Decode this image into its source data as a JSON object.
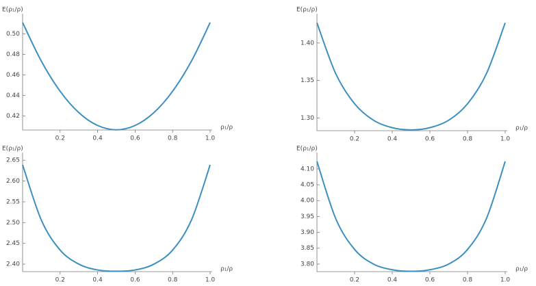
{
  "chart_data": [
    {
      "type": "line",
      "ylabel": "E(ρ₁/ρ)",
      "xlabel": "ρ₁/ρ",
      "color": "#3b8fc0",
      "x": [
        0,
        0.1,
        0.2,
        0.3,
        0.4,
        0.5,
        0.6,
        0.7,
        0.8,
        0.9,
        1
      ],
      "values": [
        0.511,
        0.4734,
        0.4441,
        0.4232,
        0.4107,
        0.4065,
        0.4107,
        0.4232,
        0.4441,
        0.4734,
        0.511
      ],
      "xlim": [
        0,
        1
      ],
      "ylim": [
        0.4063,
        0.513
      ],
      "xticks": [
        0.2,
        0.4,
        0.6,
        0.8,
        {
          "value": 1,
          "label": "1.0"
        }
      ],
      "yticks": [
        {
          "value": 0.42,
          "label": "0.42"
        },
        {
          "value": 0.44,
          "label": "0.44"
        },
        {
          "value": 0.46,
          "label": "0.46"
        },
        {
          "value": 0.48,
          "label": "0.48"
        },
        {
          "value": 0.5,
          "label": "0.50"
        }
      ]
    },
    {
      "type": "line",
      "ylabel": "E(ρ₁/ρ)",
      "xlabel": "ρ₁/ρ",
      "color": "#3b8fc0",
      "x": [
        0,
        0.1,
        0.2,
        0.3,
        0.4,
        0.5,
        0.6,
        0.7,
        0.8,
        0.9,
        1
      ],
      "values": [
        1.427,
        1.359,
        1.319,
        1.297,
        1.287,
        1.284,
        1.287,
        1.297,
        1.319,
        1.359,
        1.427
      ],
      "xlim": [
        0,
        1
      ],
      "ylim": [
        1.283,
        1.43
      ],
      "xticks": [
        0.2,
        0.4,
        0.6,
        0.8,
        {
          "value": 1,
          "label": "1.0"
        }
      ],
      "yticks": [
        {
          "value": 1.3,
          "label": "1.30"
        },
        1.35,
        {
          "value": 1.4,
          "label": "1.40"
        }
      ]
    },
    {
      "type": "line",
      "ylabel": "E(ρ₁/ρ)",
      "xlabel": "ρ₁/ρ",
      "color": "#3b8fc0",
      "x": [
        0,
        0.1,
        0.2,
        0.3,
        0.4,
        0.5,
        0.6,
        0.7,
        0.8,
        0.9,
        1
      ],
      "values": [
        2.639,
        2.506,
        2.434,
        2.4,
        2.386,
        2.383,
        2.386,
        2.4,
        2.434,
        2.506,
        2.639
      ],
      "xlim": [
        0,
        1
      ],
      "ylim": [
        2.382,
        2.652
      ],
      "xticks": [
        0.2,
        0.4,
        0.6,
        0.8,
        {
          "value": 1,
          "label": "1.0"
        }
      ],
      "yticks": [
        {
          "value": 2.4,
          "label": "2.40"
        },
        2.45,
        {
          "value": 2.5,
          "label": "2.50"
        },
        2.55,
        {
          "value": 2.6,
          "label": "2.60"
        },
        2.65
      ]
    },
    {
      "type": "line",
      "ylabel": "E(ρ₁/ρ)",
      "xlabel": "ρ₁/ρ",
      "color": "#3b8fc0",
      "x": [
        0,
        0.1,
        0.2,
        0.3,
        0.4,
        0.5,
        0.6,
        0.7,
        0.8,
        0.9,
        1
      ],
      "values": [
        4.124,
        3.943,
        3.846,
        3.8,
        3.782,
        3.777,
        3.782,
        3.8,
        3.846,
        3.943,
        4.124
      ],
      "xlim": [
        0,
        1
      ],
      "ylim": [
        3.776,
        4.13
      ],
      "xticks": [
        0.2,
        0.4,
        0.6,
        0.8,
        {
          "value": 1,
          "label": "1.0"
        }
      ],
      "yticks": [
        {
          "value": 3.8,
          "label": "3.80"
        },
        3.85,
        {
          "value": 3.9,
          "label": "3.90"
        },
        3.95,
        {
          "value": 4,
          "label": "4.00"
        },
        4.05,
        {
          "value": 4.1,
          "label": "4.10"
        }
      ]
    }
  ]
}
